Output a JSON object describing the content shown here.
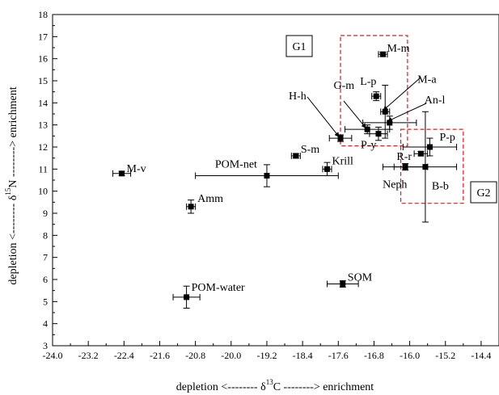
{
  "chart_data": {
    "type": "scatter",
    "xlim": [
      -24.0,
      -14.0
    ],
    "ylim": [
      3,
      18
    ],
    "x_ticks": [
      "-24.0",
      "-23.2",
      "-22.4",
      "-21.6",
      "-20.8",
      "-20.0",
      "-19.2",
      "-18.4",
      "-17.6",
      "-16.8",
      "-16.0",
      "-15.2",
      "-14.4"
    ],
    "y_ticks": [
      "3",
      "4",
      "5",
      "6",
      "7",
      "8",
      "9",
      "10",
      "11",
      "12",
      "13",
      "14",
      "15",
      "16",
      "17",
      "18"
    ],
    "xlabel": {
      "left": "depletion <-------- δ",
      "sup": "13",
      "right": "C --------> enrichment"
    },
    "ylabel": {
      "left": "depletion <-------- δ",
      "sup": "15",
      "right": "N --------> enrichment"
    },
    "grid": false,
    "legend": "none",
    "colors": {
      "points": "#000000",
      "groups": "#e8171d"
    },
    "points": [
      {
        "label": "M-v",
        "x": -22.45,
        "y": 10.8,
        "xerr": 0.2,
        "yerr": 0.1
      },
      {
        "label": "Amm",
        "x": -20.9,
        "y": 9.3,
        "xerr": 0.1,
        "yerr": 0.3
      },
      {
        "label": "POM-water",
        "x": -21.0,
        "y": 5.2,
        "xerr": 0.3,
        "yerr": 0.5
      },
      {
        "label": "POM-net",
        "x": -19.2,
        "y": 10.7,
        "xerr": 1.6,
        "yerr": 0.5
      },
      {
        "label": "S-m",
        "x": -18.55,
        "y": 11.6,
        "xerr": 0.1,
        "yerr": 0.1
      },
      {
        "label": "Krill",
        "x": -17.85,
        "y": 11.0,
        "xerr": 0.1,
        "yerr": 0.3
      },
      {
        "label": "SOM",
        "x": -17.5,
        "y": 5.8,
        "xerr": 0.35,
        "yerr": 0.15
      },
      {
        "label": "H-h",
        "x": -17.55,
        "y": 12.4,
        "xerr": 0.25,
        "yerr": 0.15
      },
      {
        "label": "G-m",
        "x": -16.95,
        "y": 12.8,
        "xerr": 0.5,
        "yerr": 0.2
      },
      {
        "label": "P-y",
        "x": -16.7,
        "y": 12.6,
        "xerr": 0.2,
        "yerr": 0.3
      },
      {
        "label": "L-p",
        "x": -16.75,
        "y": 14.3,
        "xerr": 0.1,
        "yerr": 0.2
      },
      {
        "label": "M-m",
        "x": -16.6,
        "y": 16.2,
        "xerr": 0.1,
        "yerr": 0.1
      },
      {
        "label": "M-a",
        "x": -16.55,
        "y": 13.6,
        "xerr": 0.1,
        "yerr": 1.2
      },
      {
        "label": "An-l",
        "x": -16.45,
        "y": 13.1,
        "xerr": 0.6,
        "yerr": 0.3
      },
      {
        "label": "R-r",
        "x": -15.75,
        "y": 11.7,
        "xerr": 0.15,
        "yerr": 0.1
      },
      {
        "label": "Neph",
        "x": -16.1,
        "y": 11.1,
        "xerr": 0.5,
        "yerr": 0.15
      },
      {
        "label": "P-p",
        "x": -15.55,
        "y": 12.0,
        "xerr": 0.6,
        "yerr": 0.4
      },
      {
        "label": "B-b",
        "x": -15.65,
        "y": 11.1,
        "xerr": 0.7,
        "yerr": 2.5
      }
    ],
    "groups": [
      {
        "label": "G1",
        "x_range": [
          -17.55,
          -16.05
        ],
        "y_range": [
          12.05,
          17.05
        ]
      },
      {
        "label": "G2",
        "x_range": [
          -16.2,
          -14.8
        ],
        "y_range": [
          9.45,
          12.8
        ]
      }
    ]
  }
}
